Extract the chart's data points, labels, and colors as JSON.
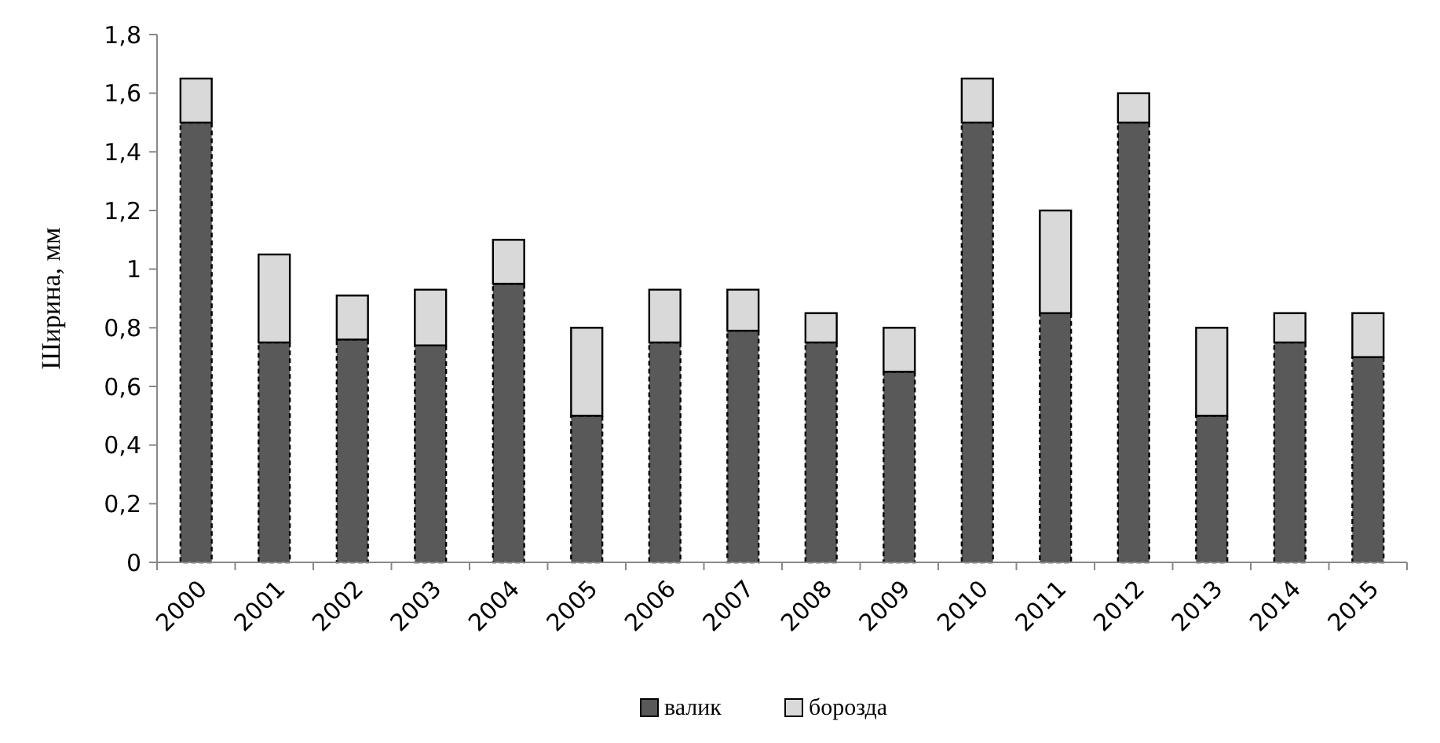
{
  "chart_data": {
    "type": "bar",
    "stacked": true,
    "ylabel": "Ширина, мм",
    "categories": [
      "2000",
      "2001",
      "2002",
      "2003",
      "2004",
      "2005",
      "2006",
      "2007",
      "2008",
      "2009",
      "2010",
      "2011",
      "2012",
      "2013",
      "2014",
      "2015"
    ],
    "series": [
      {
        "name": "валик",
        "color": "#595959",
        "values": [
          1.5,
          0.75,
          0.76,
          0.74,
          0.95,
          0.5,
          0.75,
          0.79,
          0.75,
          0.65,
          1.5,
          0.85,
          1.5,
          0.5,
          0.75,
          0.7
        ]
      },
      {
        "name": "борозда",
        "color": "#d9d9d9",
        "values": [
          0.15,
          0.3,
          0.15,
          0.19,
          0.15,
          0.3,
          0.18,
          0.14,
          0.1,
          0.15,
          0.15,
          0.35,
          0.1,
          0.3,
          0.1,
          0.15
        ]
      }
    ],
    "ylim": [
      0,
      1.8
    ],
    "yticks": [
      0,
      {
        "value": 0.2,
        "label": "0,2"
      },
      {
        "value": 0.4,
        "label": "0,4"
      },
      {
        "value": 0.6,
        "label": "0,6"
      },
      {
        "value": 0.8,
        "label": "0,8"
      },
      1,
      {
        "value": 1.2,
        "label": "1,2"
      },
      {
        "value": 1.4,
        "label": "1,4"
      },
      {
        "value": 1.6,
        "label": "1,6"
      },
      {
        "value": 1.8,
        "label": "1,8"
      }
    ],
    "grid": false,
    "legend": "bottom"
  }
}
